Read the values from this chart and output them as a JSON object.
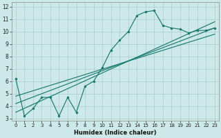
{
  "xlabel": "Humidex (Indice chaleur)",
  "bg_color": "#cce8e8",
  "grid_color": "#aacccc",
  "line_color": "#1a7a6e",
  "xlim": [
    -0.5,
    23.5
  ],
  "ylim": [
    2.8,
    12.4
  ],
  "yticks": [
    3,
    4,
    5,
    6,
    7,
    8,
    9,
    10,
    11,
    12
  ],
  "xticks": [
    0,
    1,
    2,
    3,
    4,
    5,
    6,
    7,
    8,
    9,
    10,
    11,
    12,
    13,
    14,
    15,
    16,
    17,
    18,
    19,
    20,
    21,
    22,
    23
  ],
  "line1_x": [
    0,
    1,
    2,
    3,
    4,
    5,
    6,
    7,
    8,
    9,
    10,
    11,
    12,
    13,
    14,
    15,
    16,
    17,
    18,
    19,
    20,
    21,
    22,
    23
  ],
  "line1_y": [
    6.2,
    3.2,
    3.8,
    4.7,
    4.7,
    3.2,
    4.7,
    3.5,
    5.6,
    6.0,
    7.1,
    8.5,
    9.3,
    10.0,
    11.3,
    11.6,
    11.7,
    10.5,
    10.3,
    10.2,
    9.9,
    10.1,
    10.1,
    10.3
  ],
  "line2_x": [
    0,
    23
  ],
  "line2_y": [
    3.5,
    10.8
  ],
  "line3_x": [
    0,
    23
  ],
  "line3_y": [
    4.2,
    10.3
  ],
  "line4_x": [
    0,
    23
  ],
  "line4_y": [
    4.8,
    9.8
  ],
  "xlabel_fontsize": 6,
  "tick_fontsize_x": 5,
  "tick_fontsize_y": 5.5
}
